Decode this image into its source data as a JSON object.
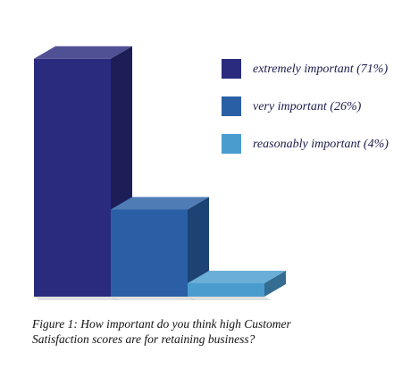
{
  "chart_data": {
    "type": "bar",
    "categories": [
      "extremely important (71%)",
      "very important (26%)",
      "reasonably important (4%)"
    ],
    "values": [
      71,
      26,
      4
    ],
    "colors": [
      "#2a2b7e",
      "#2a5fa6",
      "#4a9ccf"
    ],
    "legend": [
      "extremely important (71%)",
      "very important (26%)",
      "reasonably important (4%)"
    ],
    "legend_position": "top-right",
    "grid": false,
    "three_d": true,
    "title": ""
  },
  "caption": {
    "line1": "Figure 1: How important do you think high Customer",
    "line2": "Satisfaction scores are for retaining business?"
  }
}
